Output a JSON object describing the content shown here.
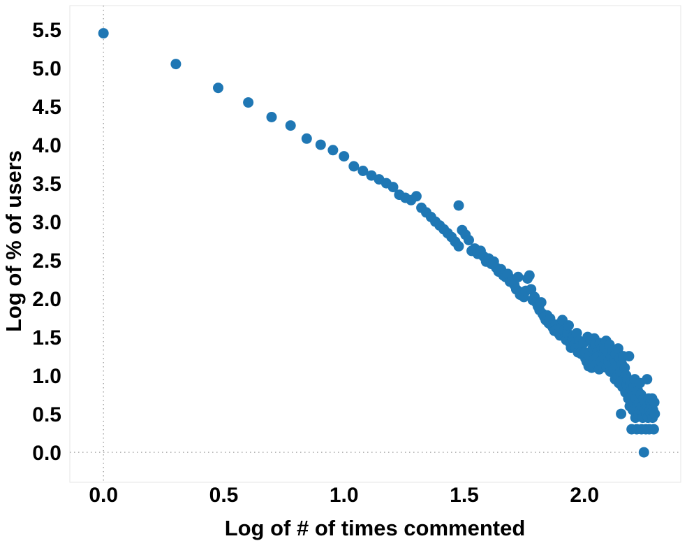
{
  "chart_data": {
    "type": "scatter",
    "title": "",
    "xlabel": "Log of # of times commented",
    "ylabel": "Log of % of users",
    "legend": "none",
    "grid": "dotted reference lines at x=0 and y=0 only",
    "x_ticks": [
      0.0,
      0.5,
      1.0,
      1.5,
      2.0
    ],
    "y_ticks": [
      0.0,
      0.5,
      1.0,
      1.5,
      2.0,
      2.5,
      3.0,
      3.5,
      4.0,
      4.5,
      5.0,
      5.5
    ],
    "xlim": [
      -0.14,
      2.4
    ],
    "ylim": [
      -0.39,
      5.81
    ],
    "marker_color": "#1f77b4",
    "marker_radius": 7.5,
    "points": [
      [
        0.0,
        5.45
      ],
      [
        0.301,
        5.05
      ],
      [
        0.477,
        4.74
      ],
      [
        0.602,
        4.55
      ],
      [
        0.699,
        4.36
      ],
      [
        0.778,
        4.25
      ],
      [
        0.845,
        4.08
      ],
      [
        0.903,
        4.0
      ],
      [
        0.954,
        3.93
      ],
      [
        1.0,
        3.85
      ],
      [
        1.041,
        3.72
      ],
      [
        1.079,
        3.66
      ],
      [
        1.114,
        3.6
      ],
      [
        1.146,
        3.55
      ],
      [
        1.176,
        3.5
      ],
      [
        1.204,
        3.45
      ],
      [
        1.23,
        3.35
      ],
      [
        1.255,
        3.31
      ],
      [
        1.279,
        3.28
      ],
      [
        1.301,
        3.33
      ],
      [
        1.322,
        3.18
      ],
      [
        1.342,
        3.12
      ],
      [
        1.362,
        3.06
      ],
      [
        1.38,
        3.0
      ],
      [
        1.398,
        2.95
      ],
      [
        1.415,
        2.9
      ],
      [
        1.431,
        2.85
      ],
      [
        1.447,
        2.8
      ],
      [
        1.462,
        2.74
      ],
      [
        1.477,
        2.68
      ],
      [
        1.477,
        3.21
      ],
      [
        1.491,
        2.89
      ],
      [
        1.505,
        2.83
      ],
      [
        1.519,
        2.76
      ],
      [
        1.531,
        2.62
      ],
      [
        1.544,
        2.65
      ],
      [
        1.556,
        2.58
      ],
      [
        1.568,
        2.62
      ],
      [
        1.58,
        2.55
      ],
      [
        1.591,
        2.48
      ],
      [
        1.602,
        2.52
      ],
      [
        1.613,
        2.45
      ],
      [
        1.623,
        2.48
      ],
      [
        1.633,
        2.4
      ],
      [
        1.643,
        2.35
      ],
      [
        1.653,
        2.38
      ],
      [
        1.663,
        2.3
      ],
      [
        1.672,
        2.28
      ],
      [
        1.681,
        2.32
      ],
      [
        1.69,
        2.22
      ],
      [
        1.699,
        2.25
      ],
      [
        1.708,
        2.18
      ],
      [
        1.716,
        2.12
      ],
      [
        1.724,
        2.28
      ],
      [
        1.732,
        2.05
      ],
      [
        1.74,
        2.08
      ],
      [
        1.748,
        2.02
      ],
      [
        1.756,
        2.1
      ],
      [
        1.763,
        2.26
      ],
      [
        1.771,
        2.3
      ],
      [
        1.778,
        2.12
      ],
      [
        1.785,
        1.98
      ],
      [
        1.792,
        2.02
      ],
      [
        1.799,
        1.95
      ],
      [
        1.806,
        1.9
      ],
      [
        1.813,
        1.85
      ],
      [
        1.82,
        1.95
      ],
      [
        1.826,
        1.8
      ],
      [
        1.833,
        1.76
      ],
      [
        1.839,
        1.72
      ],
      [
        1.845,
        1.78
      ],
      [
        1.851,
        1.68
      ],
      [
        1.857,
        1.74
      ],
      [
        1.863,
        1.65
      ],
      [
        1.869,
        1.62
      ],
      [
        1.875,
        1.58
      ],
      [
        1.881,
        1.66
      ],
      [
        1.886,
        1.6
      ],
      [
        1.892,
        1.55
      ],
      [
        1.898,
        1.52
      ],
      [
        1.903,
        1.62
      ],
      [
        1.908,
        1.72
      ],
      [
        1.914,
        1.58
      ],
      [
        1.919,
        1.5
      ],
      [
        1.924,
        1.46
      ],
      [
        1.929,
        1.55
      ],
      [
        1.934,
        1.65
      ],
      [
        1.94,
        1.42
      ],
      [
        1.944,
        1.36
      ],
      [
        1.949,
        1.48
      ],
      [
        1.954,
        1.52
      ],
      [
        1.959,
        1.4
      ],
      [
        1.964,
        1.35
      ],
      [
        1.968,
        1.55
      ],
      [
        1.973,
        1.3
      ],
      [
        1.978,
        1.45
      ],
      [
        1.982,
        1.38
      ],
      [
        1.987,
        1.28
      ],
      [
        1.991,
        1.32
      ],
      [
        1.996,
        1.42
      ],
      [
        2.0,
        1.3
      ],
      [
        2.004,
        1.22
      ],
      [
        2.009,
        1.18
      ],
      [
        2.013,
        1.5
      ],
      [
        2.017,
        1.12
      ],
      [
        2.021,
        1.25
      ],
      [
        2.026,
        1.45
      ],
      [
        2.03,
        1.1
      ],
      [
        2.034,
        1.35
      ],
      [
        2.038,
        1.2
      ],
      [
        2.041,
        1.48
      ],
      [
        2.045,
        1.4
      ],
      [
        2.049,
        1.15
      ],
      [
        2.053,
        1.3
      ],
      [
        2.057,
        1.25
      ],
      [
        2.061,
        1.08
      ],
      [
        2.064,
        1.42
      ],
      [
        2.068,
        1.18
      ],
      [
        2.072,
        1.35
      ],
      [
        2.076,
        1.12
      ],
      [
        2.079,
        1.28
      ],
      [
        2.083,
        1.35
      ],
      [
        2.086,
        1.22
      ],
      [
        2.09,
        1.45
      ],
      [
        2.093,
        1.1
      ],
      [
        2.097,
        1.3
      ],
      [
        2.1,
        1.18
      ],
      [
        2.104,
        1.4
      ],
      [
        2.107,
        1.05
      ],
      [
        2.111,
        1.25
      ],
      [
        2.114,
        1.15
      ],
      [
        2.117,
        1.32
      ],
      [
        2.121,
        1.08
      ],
      [
        2.124,
        1.2
      ],
      [
        2.127,
        0.95
      ],
      [
        2.13,
        1.28
      ],
      [
        2.134,
        1.12
      ],
      [
        2.137,
        1.0
      ],
      [
        2.14,
        1.35
      ],
      [
        2.143,
        0.9
      ],
      [
        2.146,
        1.22
      ],
      [
        2.149,
        1.05
      ],
      [
        2.152,
        0.5
      ],
      [
        2.155,
        1.15
      ],
      [
        2.158,
        0.85
      ],
      [
        2.161,
        1.25
      ],
      [
        2.164,
        0.95
      ],
      [
        2.167,
        1.1
      ],
      [
        2.17,
        0.78
      ],
      [
        2.173,
        1.0
      ],
      [
        2.176,
        0.88
      ],
      [
        2.179,
        0.95
      ],
      [
        2.182,
        0.7
      ],
      [
        2.185,
        1.25
      ],
      [
        2.188,
        0.6
      ],
      [
        2.19,
        0.9
      ],
      [
        2.193,
        0.8
      ],
      [
        2.196,
        0.3
      ],
      [
        2.198,
        0.75
      ],
      [
        2.201,
        0.55
      ],
      [
        2.204,
        0.85
      ],
      [
        2.206,
        0.65
      ],
      [
        2.209,
        0.95
      ],
      [
        2.212,
        0.45
      ],
      [
        2.214,
        0.7
      ],
      [
        2.217,
        0.3
      ],
      [
        2.22,
        0.6
      ],
      [
        2.222,
        0.8
      ],
      [
        2.225,
        0.5
      ],
      [
        2.227,
        0.65
      ],
      [
        2.23,
        0.9
      ],
      [
        2.232,
        0.55
      ],
      [
        2.235,
        0.75
      ],
      [
        2.237,
        0.3
      ],
      [
        2.24,
        0.6
      ],
      [
        2.242,
        0.45
      ],
      [
        2.245,
        0.7
      ],
      [
        2.247,
        0.0
      ],
      [
        2.25,
        0.55
      ],
      [
        2.252,
        0.65
      ],
      [
        2.255,
        0.3
      ],
      [
        2.257,
        0.5
      ],
      [
        2.26,
        0.95
      ],
      [
        2.262,
        0.6
      ],
      [
        2.264,
        0.45
      ],
      [
        2.267,
        0.7
      ],
      [
        2.269,
        0.3
      ],
      [
        2.271,
        0.55
      ],
      [
        2.274,
        0.65
      ],
      [
        2.276,
        0.5
      ],
      [
        2.278,
        0.6
      ],
      [
        2.281,
        0.7
      ],
      [
        2.283,
        0.45
      ],
      [
        2.285,
        0.55
      ],
      [
        2.288,
        0.3
      ],
      [
        2.29,
        0.65
      ],
      [
        2.292,
        0.5
      ]
    ]
  },
  "colors": {
    "background": "#ffffff",
    "text": "#000000",
    "marker": "#1f77b4",
    "grid": "#aaaaaa",
    "plot_border": "#e5e5e5"
  }
}
